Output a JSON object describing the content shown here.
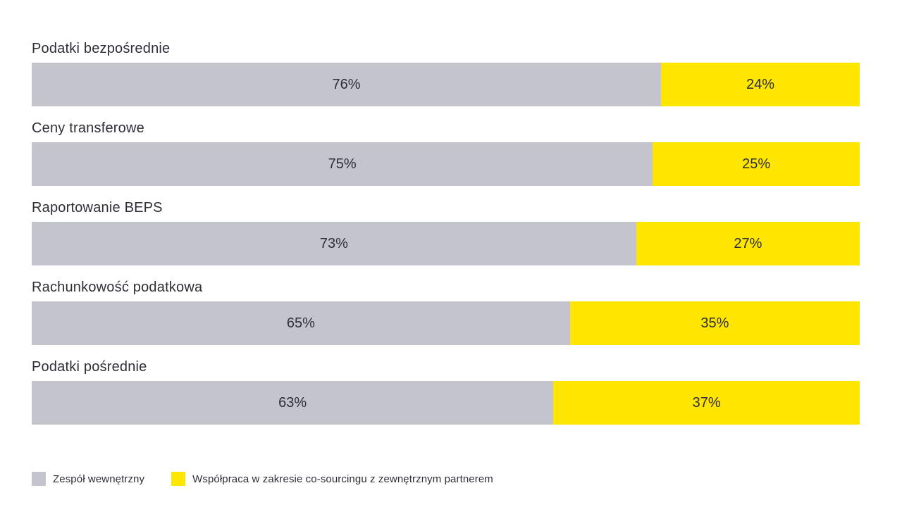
{
  "chart_data": {
    "type": "bar",
    "orientation": "horizontal",
    "stacked": true,
    "title": "",
    "categories": [
      "Podatki bezpośrednie",
      "Ceny transferowe",
      "Raportowanie BEPS",
      "Rachunkowość podatkowa",
      "Podatki pośrednie"
    ],
    "series": [
      {
        "name": "Zespół wewnętrzny",
        "color": "#c4c4cd",
        "values": [
          76,
          75,
          73,
          65,
          63
        ]
      },
      {
        "name": "Współpraca w zakresie co-sourcingu z zewnętrznym partnerem",
        "color": "#ffe600",
        "values": [
          24,
          25,
          27,
          35,
          37
        ]
      }
    ],
    "value_suffix": "%",
    "xlim": [
      0,
      100
    ],
    "grid": false,
    "legend_position": "bottom"
  },
  "colors": {
    "text": "#2e2e38",
    "background": "#ffffff",
    "internal_team": "#c4c4cd",
    "cosourcing": "#ffe600"
  }
}
